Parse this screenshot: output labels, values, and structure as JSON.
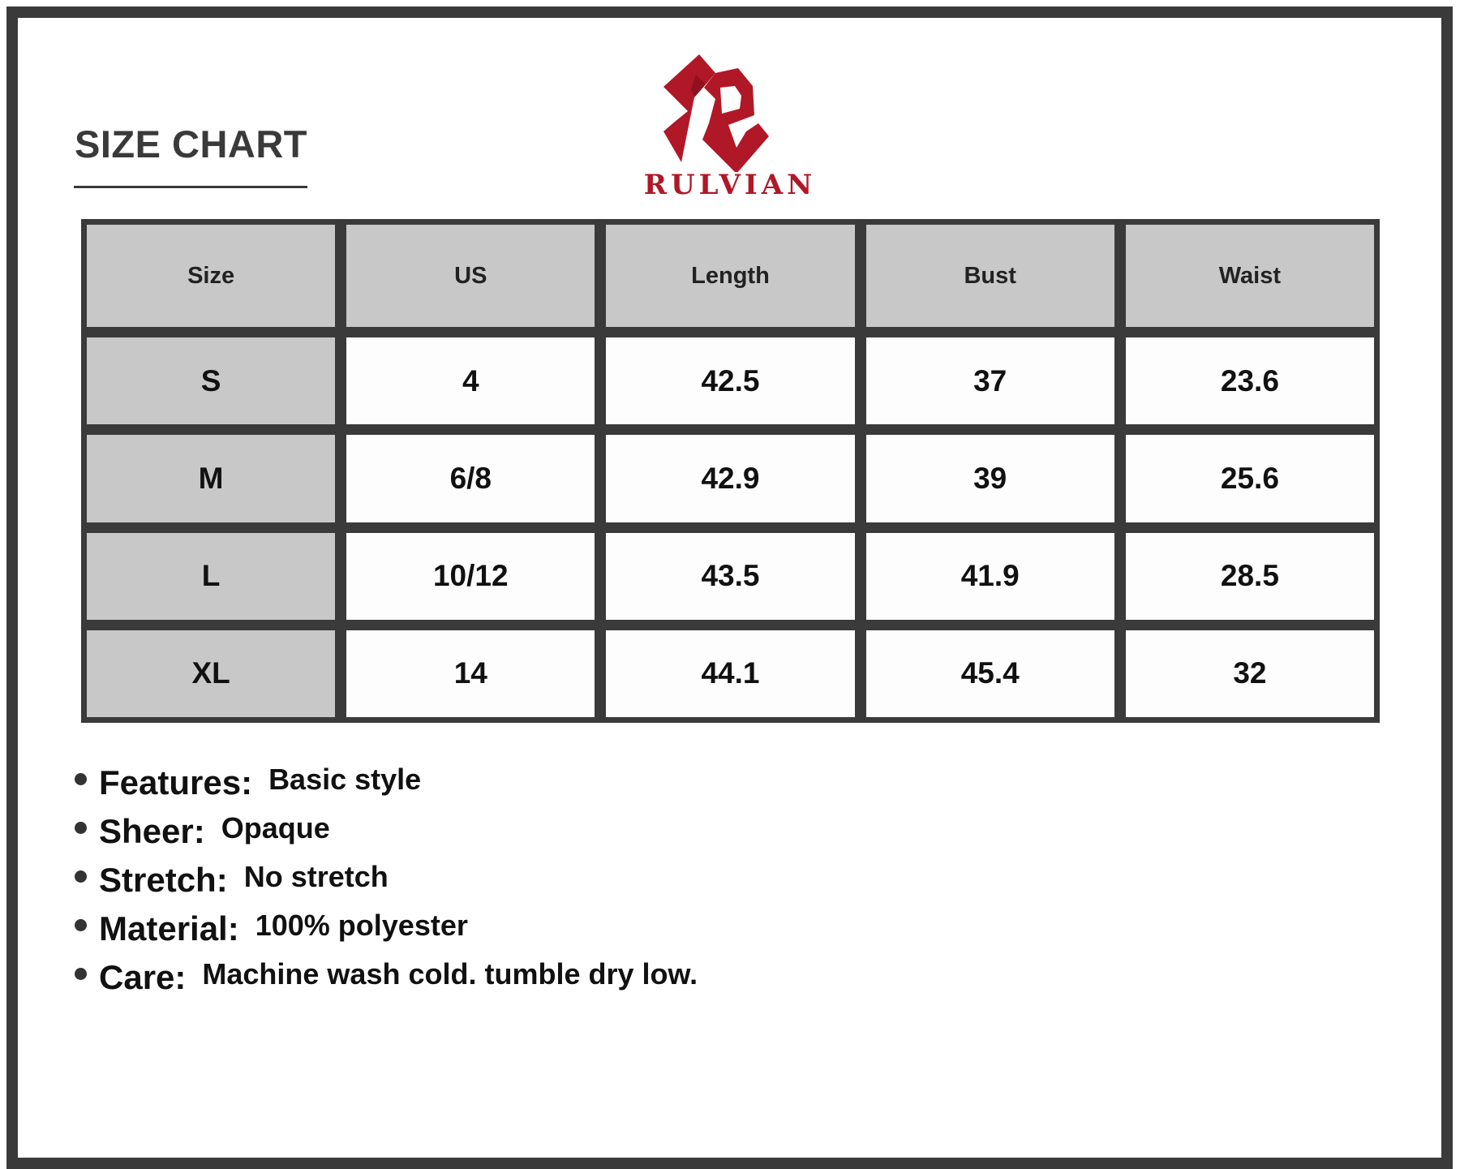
{
  "title": "SIZE CHART",
  "brand": {
    "name": "RULVIAN",
    "color": "#b01827"
  },
  "table": {
    "headers": [
      "Size",
      "US",
      "Length",
      "Bust",
      "Waist"
    ],
    "rows": [
      [
        "S",
        "4",
        "42.5",
        "37",
        "23.6"
      ],
      [
        "M",
        "6/8",
        "42.9",
        "39",
        "25.6"
      ],
      [
        "L",
        "10/12",
        "43.5",
        "41.9",
        "28.5"
      ],
      [
        "XL",
        "14",
        "44.1",
        "45.4",
        "32"
      ]
    ]
  },
  "features": [
    {
      "label": "Features:",
      "value": "Basic style"
    },
    {
      "label": "Sheer:",
      "value": "Opaque"
    },
    {
      "label": "Stretch:",
      "value": "No stretch"
    },
    {
      "label": "Material:",
      "value": "100% polyester"
    },
    {
      "label": "Care:",
      "value": "Machine wash cold. tumble dry low."
    }
  ]
}
